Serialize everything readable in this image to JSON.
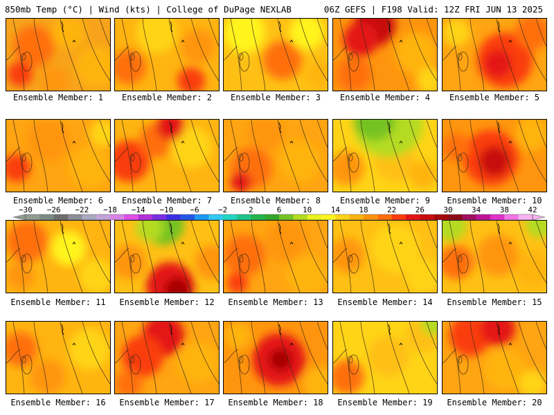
{
  "header": {
    "left": "850mb Temp (°C) | Wind (kts) | College of DuPage NEXLAB",
    "right": "06Z GEFS | F198 Valid: 12Z FRI JUN 13 2025"
  },
  "colorbar": {
    "tick_labels": [
      "-30",
      "-26",
      "-22",
      "-18",
      "-14",
      "-10",
      "-6",
      "-2",
      "2",
      "6",
      "10",
      "14",
      "18",
      "22",
      "26",
      "30",
      "34",
      "38",
      "42"
    ],
    "colors": [
      "#929b92",
      "#7d8a84",
      "#6e6e6e",
      "#8c8c96",
      "#a9a9c0",
      "#c3a4d8",
      "#d783e6",
      "#e04fe6",
      "#b32fd9",
      "#7a2ee0",
      "#3a2fe0",
      "#2457e6",
      "#1c98f2",
      "#33c9f2",
      "#23d6c3",
      "#1fc48a",
      "#23b44c",
      "#33a528",
      "#75c224",
      "#b4db20",
      "#eaf220",
      "#fff41f",
      "#ffd417",
      "#ffb411",
      "#ff950e",
      "#ff6f0c",
      "#fa3c0c",
      "#e41414",
      "#c80c0c",
      "#a60606",
      "#8c0a14",
      "#a01060",
      "#bf1498",
      "#e033c6",
      "#f575e6",
      "#f8b3f0"
    ]
  },
  "panels": [
    {
      "label": "Ensemble Member: 1"
    },
    {
      "label": "Ensemble Member: 2"
    },
    {
      "label": "Ensemble Member: 3"
    },
    {
      "label": "Ensemble Member: 4"
    },
    {
      "label": "Ensemble Member: 5"
    },
    {
      "label": "Ensemble Member: 6"
    },
    {
      "label": "Ensemble Member: 7"
    },
    {
      "label": "Ensemble Member: 8"
    },
    {
      "label": "Ensemble Member: 9"
    },
    {
      "label": "Ensemble Member: 10"
    },
    {
      "label": "Ensemble Member: 11"
    },
    {
      "label": "Ensemble Member: 12"
    },
    {
      "label": "Ensemble Member: 13"
    },
    {
      "label": "Ensemble Member: 14"
    },
    {
      "label": "Ensemble Member: 15"
    },
    {
      "label": "Ensemble Member: 16"
    },
    {
      "label": "Ensemble Member: 17"
    },
    {
      "label": "Ensemble Member: 18"
    },
    {
      "label": "Ensemble Member: 19"
    },
    {
      "label": "Ensemble Member: 20"
    }
  ]
}
